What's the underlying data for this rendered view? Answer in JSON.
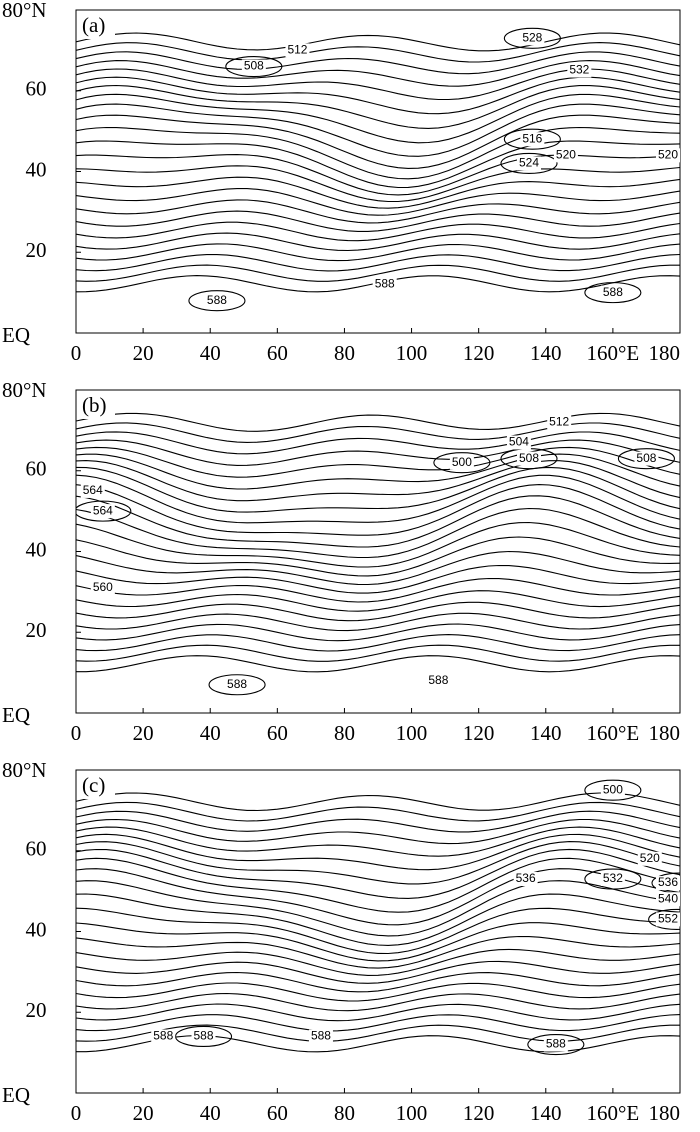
{
  "axes": {
    "xlim": [
      0,
      180
    ],
    "ylim": [
      0,
      80
    ],
    "xticks": [
      0,
      20,
      40,
      60,
      80,
      100,
      120,
      140,
      {
        "value": 160,
        "label": "160°E"
      },
      180
    ],
    "yticks": [
      {
        "value": 0,
        "label": "EQ"
      },
      20,
      40,
      60,
      {
        "value": 80,
        "label": "80°N"
      }
    ]
  },
  "panels": [
    {
      "label": "(a)",
      "contour_labels": [
        508,
        512,
        528,
        532,
        516,
        520,
        524,
        520,
        588,
        588,
        588
      ]
    },
    {
      "label": "(b)",
      "contour_labels": [
        500,
        504,
        508,
        512,
        508,
        564,
        564,
        560,
        588,
        588
      ]
    },
    {
      "label": "(c)",
      "contour_labels": [
        500,
        520,
        532,
        536,
        536,
        540,
        552,
        588,
        588,
        588,
        588
      ]
    }
  ]
}
